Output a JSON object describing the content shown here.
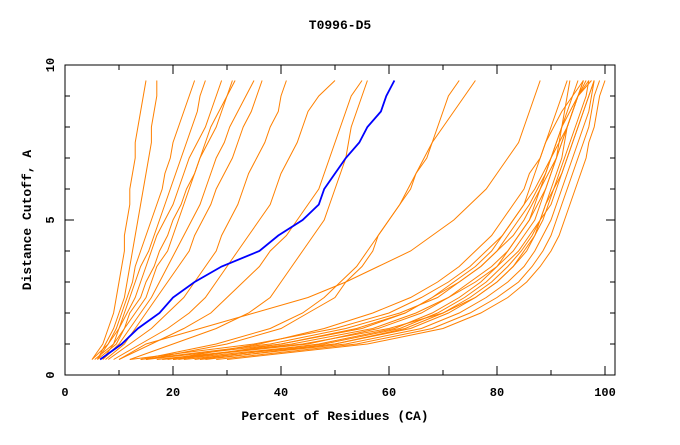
{
  "chart_data": {
    "type": "line",
    "title": "T0996-D5",
    "xlabel": "Percent of Residues (CA)",
    "ylabel": "Distance Cutoff, A",
    "xlim": [
      0,
      100
    ],
    "ylim": [
      0,
      10
    ],
    "x_ticks": [
      "0",
      "20",
      "40",
      "60",
      "80",
      "100"
    ],
    "y_ticks": [
      "0",
      "5",
      "10"
    ],
    "grid": false,
    "colors": {
      "highlight": "#0000ff",
      "others": "#ff8000"
    },
    "y": [
      0.5,
      1,
      1.5,
      2,
      2.5,
      3,
      3.5,
      4,
      4.5,
      5,
      5.5,
      6,
      6.5,
      7,
      7.5,
      8,
      8.5,
      9,
      9.5
    ],
    "highlight_series": {
      "x": [
        6.5,
        10.5,
        13.5,
        17.5,
        20,
        24,
        29,
        36,
        39.5,
        44,
        47,
        48,
        50,
        52,
        54.5,
        56,
        58.5,
        59.5,
        61
      ]
    },
    "series": [
      {
        "x": [
          5,
          7,
          8,
          9,
          9.5,
          10,
          10.5,
          11,
          11,
          11.5,
          12,
          12,
          12.5,
          13,
          13,
          13.5,
          14,
          14.5,
          15
        ]
      },
      {
        "x": [
          6,
          7.5,
          9,
          10,
          11,
          11.5,
          12,
          12.5,
          13,
          13.5,
          14,
          14.5,
          15,
          15.5,
          16,
          16,
          16.5,
          17,
          17
        ]
      },
      {
        "x": [
          5,
          8,
          9.5,
          10.5,
          11.5,
          12.5,
          13,
          14,
          15,
          16,
          17,
          18,
          18.5,
          19.5,
          20,
          21,
          22,
          23,
          24
        ]
      },
      {
        "x": [
          6,
          8,
          10,
          11,
          12,
          13,
          14,
          15.5,
          16.5,
          17.5,
          18.5,
          19.5,
          20.5,
          21.5,
          22.5,
          23.5,
          24.5,
          25,
          26
        ]
      },
      {
        "x": [
          5.5,
          9,
          10,
          11.5,
          13,
          14,
          15,
          16,
          17,
          18.5,
          20,
          21,
          22,
          23,
          24.5,
          26,
          27,
          28,
          29
        ]
      },
      {
        "x": [
          7,
          9,
          11,
          12,
          14,
          15,
          16.5,
          17.5,
          19,
          20,
          21.5,
          22.5,
          24,
          25,
          26.5,
          28,
          29,
          30,
          31
        ]
      },
      {
        "x": [
          6,
          9.5,
          11,
          13,
          15,
          16,
          17,
          19,
          20,
          21,
          22,
          23,
          24,
          25,
          26,
          27,
          28.5,
          30,
          31.5
        ]
      },
      {
        "x": [
          7,
          10,
          12,
          14,
          16,
          17.5,
          19,
          20.5,
          22,
          23.5,
          25,
          26,
          27,
          28,
          29.5,
          30.5,
          32,
          33.5,
          35
        ]
      },
      {
        "x": [
          7.5,
          11,
          13,
          15,
          17,
          19,
          21,
          23,
          24,
          25.5,
          27,
          28,
          29.5,
          31,
          32,
          33,
          34.5,
          35.5,
          36.5
        ]
      },
      {
        "x": [
          8,
          12,
          16,
          19,
          22,
          24,
          26,
          28,
          29,
          30.5,
          32,
          33,
          34,
          35.5,
          37,
          38,
          39.5,
          40,
          41
        ]
      },
      {
        "x": [
          9,
          14,
          19,
          23,
          26,
          28,
          30,
          32,
          34,
          36,
          38,
          39,
          40,
          41.5,
          43,
          44,
          45,
          47,
          50
        ]
      },
      {
        "x": [
          10,
          16,
          22,
          27,
          30,
          33,
          36,
          38,
          41,
          43,
          45,
          47,
          48,
          49,
          50,
          51,
          52,
          53,
          55
        ]
      },
      {
        "x": [
          12,
          20,
          28,
          34,
          38,
          40,
          42,
          44,
          46,
          48,
          49,
          50,
          51,
          52,
          52.5,
          53,
          54,
          55,
          56
        ]
      },
      {
        "x": [
          15,
          30,
          40,
          45,
          50,
          52,
          55,
          57,
          58,
          60,
          62,
          64,
          65,
          67,
          68,
          69,
          70,
          71,
          73
        ]
      },
      {
        "x": [
          14,
          28,
          38,
          44,
          48,
          51,
          54,
          56,
          58,
          60,
          62,
          63.5,
          65,
          66.5,
          68,
          70,
          72,
          74,
          76
        ]
      },
      {
        "x": [
          10,
          15,
          25,
          35,
          45,
          52,
          58,
          64,
          68,
          72,
          75,
          78,
          80,
          82,
          84,
          85,
          86,
          87,
          88
        ]
      },
      {
        "x": [
          15,
          40,
          55,
          63,
          68,
          72,
          76,
          79,
          81,
          83,
          85,
          86,
          87,
          88,
          89,
          90,
          91,
          92,
          93
        ]
      },
      {
        "x": [
          18,
          45,
          58,
          66,
          71,
          75,
          79,
          82,
          84,
          86,
          87,
          88,
          89,
          90,
          91,
          92,
          93,
          94,
          95
        ]
      },
      {
        "x": [
          20,
          48,
          62,
          69,
          74,
          78,
          81,
          84,
          86,
          88,
          89,
          90,
          91,
          92,
          92.5,
          93,
          94,
          95,
          96
        ]
      },
      {
        "x": [
          22,
          50,
          64,
          71,
          76,
          80,
          83,
          85.5,
          87,
          88.5,
          89.5,
          90.5,
          91.5,
          92.5,
          93.5,
          94.5,
          95.5,
          96.5,
          97
        ]
      },
      {
        "x": [
          25,
          52,
          66,
          73,
          78,
          82,
          85,
          87,
          88.5,
          90,
          91,
          92,
          93,
          94,
          95,
          96,
          97,
          97.5,
          98
        ]
      },
      {
        "x": [
          28,
          54,
          68,
          75,
          80,
          84,
          86.5,
          88.5,
          90,
          91,
          92,
          93,
          94,
          95,
          96,
          97,
          97.5,
          98,
          99
        ]
      },
      {
        "x": [
          30,
          56,
          70,
          77,
          82,
          85.5,
          88,
          90,
          91.5,
          92.5,
          93.5,
          94.5,
          95.5,
          96.5,
          97,
          98,
          98.5,
          99,
          100
        ]
      },
      {
        "x": [
          17,
          44,
          60,
          70,
          76,
          80,
          83,
          85,
          87,
          88,
          89,
          90.5,
          92,
          93,
          94,
          95,
          96,
          97,
          98
        ]
      },
      {
        "x": [
          20,
          42,
          57,
          65,
          71,
          76,
          80,
          83,
          85,
          87,
          88,
          89,
          90,
          91,
          92,
          93,
          94,
          95,
          96.5
        ]
      },
      {
        "x": [
          24,
          47,
          61,
          68,
          73,
          77,
          80,
          82,
          84,
          86,
          87.5,
          89,
          90,
          91,
          91.5,
          92,
          92.5,
          93,
          93.5
        ]
      },
      {
        "x": [
          12,
          35,
          50,
          60,
          66,
          71,
          75,
          78,
          81,
          83,
          85,
          87,
          88.5,
          90,
          91.5,
          93,
          94,
          95,
          97
        ]
      },
      {
        "x": [
          14,
          38,
          52,
          62,
          69,
          73,
          77,
          80,
          82,
          84,
          86,
          87.5,
          89,
          90,
          91,
          92,
          93.5,
          95,
          96
        ]
      },
      {
        "x": [
          26,
          50,
          63,
          70,
          75,
          79,
          82,
          84.5,
          86.5,
          88,
          90,
          91,
          92,
          93,
          94,
          95,
          96,
          97,
          98
        ]
      },
      {
        "x": [
          19,
          36,
          48,
          57,
          64,
          69,
          73,
          76,
          79,
          81,
          83,
          85,
          86,
          88,
          89,
          90.5,
          92,
          94,
          96
        ]
      },
      {
        "x": [
          21,
          40,
          54,
          63,
          68,
          73,
          77,
          80,
          83,
          85,
          86.5,
          88,
          89.5,
          91,
          92,
          93,
          94,
          95,
          97.5
        ]
      }
    ]
  }
}
